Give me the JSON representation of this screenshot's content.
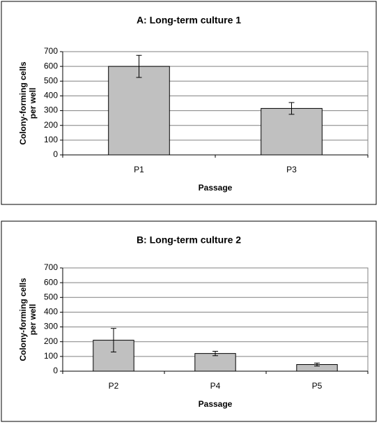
{
  "chart_data": [
    {
      "type": "bar",
      "title": "A: Long-term culture 1",
      "x_label": "Passage",
      "y_label": [
        "Colony-forming cells",
        "per well"
      ],
      "categories": [
        "P1",
        "P3"
      ],
      "values": [
        600,
        315
      ],
      "errors": [
        75,
        40
      ],
      "color": "#c0c0c0",
      "ylim": [
        0,
        700
      ],
      "yticks": [
        0,
        100,
        200,
        300,
        400,
        500,
        600,
        700
      ],
      "grid": true
    },
    {
      "type": "bar",
      "title": "B: Long-term culture 2",
      "x_label": "Passage",
      "y_label": [
        "Colony-forming cells",
        "per well"
      ],
      "categories": [
        "P2",
        "P4",
        "P5"
      ],
      "values": [
        210,
        120,
        45
      ],
      "errors": [
        80,
        15,
        10
      ],
      "color": "#c0c0c0",
      "ylim": [
        0,
        700
      ],
      "yticks": [
        0,
        100,
        200,
        300,
        400,
        500,
        600,
        700
      ],
      "grid": true
    }
  ]
}
